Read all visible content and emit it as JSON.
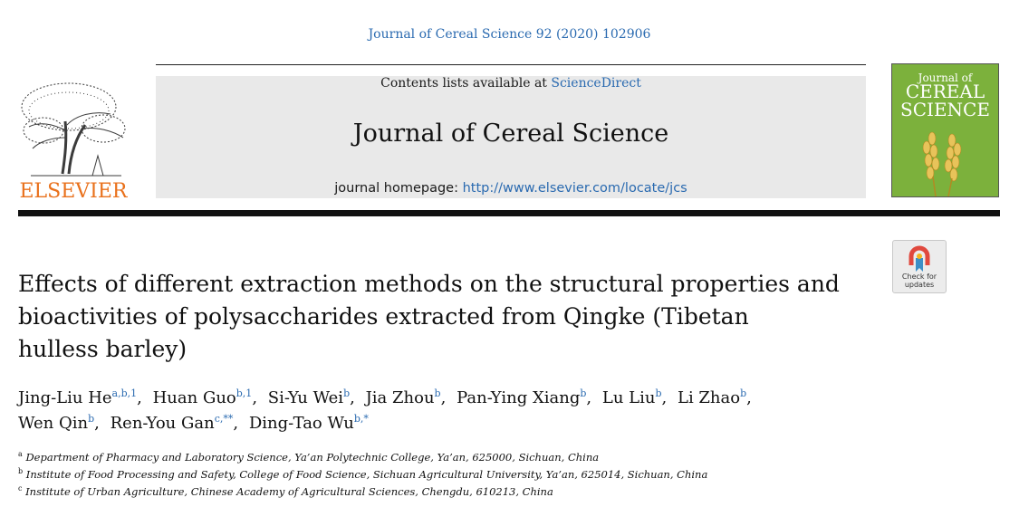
{
  "citation": "Journal of Cereal Science 92 (2020) 102906",
  "publisher": {
    "logo_text": "ELSEVIER"
  },
  "banner": {
    "contents_prefix": "Contents lists available at ",
    "contents_link": "ScienceDirect",
    "journal_title": "Journal of Cereal Science",
    "homepage_prefix": "journal homepage: ",
    "homepage_url": "http://www.elsevier.com/locate/jcs"
  },
  "cover": {
    "line1": "Journal of",
    "line2": "CEREAL",
    "line3": "SCIENCE"
  },
  "badge": {
    "line1": "Check for",
    "line2": "updates"
  },
  "article": {
    "title_lines": [
      "Effects of different extraction methods on the structural properties and",
      "bioactivities of polysaccharides extracted from Qingke (Tibetan",
      "hulless barley)"
    ],
    "authors": [
      {
        "name": "Jing-Liu He",
        "marks": "a,b,1",
        "sep": ","
      },
      {
        "name": "Huan Guo",
        "marks": "b,1",
        "sep": ","
      },
      {
        "name": "Si-Yu Wei",
        "marks": "b",
        "sep": ","
      },
      {
        "name": "Jia Zhou",
        "marks": "b",
        "sep": ","
      },
      {
        "name": "Pan-Ying Xiang",
        "marks": "b",
        "sep": ","
      },
      {
        "name": "Lu Liu",
        "marks": "b",
        "sep": ","
      },
      {
        "name": "Li Zhao",
        "marks": "b",
        "sep": ","
      },
      {
        "name": "Wen Qin",
        "marks": "b",
        "sep": ","
      },
      {
        "name": "Ren-You Gan",
        "marks": "c,**",
        "sep": ","
      },
      {
        "name": "Ding-Tao Wu",
        "marks": "b,*",
        "sep": ""
      }
    ],
    "affiliations": [
      {
        "mark": "a",
        "text": "Department of Pharmacy and Laboratory Science, Ya’an Polytechnic College, Ya’an, 625000, Sichuan, China"
      },
      {
        "mark": "b",
        "text": "Institute of Food Processing and Safety, College of Food Science, Sichuan Agricultural University, Ya’an, 625014, Sichuan, China"
      },
      {
        "mark": "c",
        "text": "Institute of Urban Agriculture, Chinese Academy of Agricultural Sciences, Chengdu, 610213, China"
      }
    ]
  },
  "colors": {
    "link": "#2a6ab0",
    "elsevier_orange": "#e9711c",
    "cover_green": "#7cb13c"
  }
}
